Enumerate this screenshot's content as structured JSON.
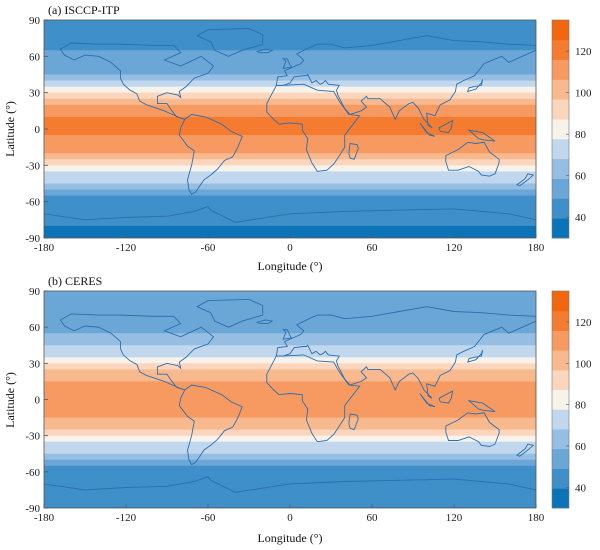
{
  "colors": {
    "bins": [
      "#0b73b7",
      "#3f8fc9",
      "#6aa6d6",
      "#95bee2",
      "#c0d7ed",
      "#f7f2ea",
      "#fbd6bd",
      "#f9b98e",
      "#f79a61",
      "#f47b2f",
      "#f2660e"
    ],
    "coast": "#2b6fb0"
  },
  "chart_data": [
    {
      "type": "heatmap",
      "title": "(a) ISCCP-ITP",
      "xlabel": "Longitude (°)",
      "ylabel": "Latitude (°)",
      "xlim": [
        -180,
        180
      ],
      "ylim": [
        -90,
        90
      ],
      "xticks": [
        "-180",
        "-120",
        "-60",
        "0",
        "60",
        "120",
        "180"
      ],
      "yticks": [
        "90",
        "60",
        "30",
        "0",
        "-30",
        "-60",
        "-90"
      ],
      "colorbar": {
        "range": [
          30,
          135
        ],
        "ticks": [
          "120",
          "100",
          "80",
          "60",
          "40"
        ]
      },
      "zonal_profile": {
        "lat": [
          90,
          75,
          60,
          45,
          30,
          15,
          0,
          -15,
          -30,
          -45,
          -60,
          -75,
          -90
        ],
        "value": [
          45,
          45,
          50,
          60,
          90,
          115,
          120,
          110,
          90,
          65,
          42,
          42,
          35
        ]
      }
    },
    {
      "type": "heatmap",
      "title": "(b) CERES",
      "xlabel": "Longitude (°)",
      "ylabel": "Latitude (°)",
      "xlim": [
        -180,
        180
      ],
      "ylim": [
        -90,
        90
      ],
      "xticks": [
        "-180",
        "-120",
        "-60",
        "0",
        "60",
        "120",
        "180"
      ],
      "yticks": [
        "90",
        "60",
        "30",
        "0",
        "-30",
        "-60",
        "-90"
      ],
      "colorbar": {
        "range": [
          30,
          135
        ],
        "ticks": [
          "120",
          "100",
          "80",
          "60",
          "40"
        ]
      },
      "zonal_profile": {
        "lat": [
          90,
          75,
          60,
          45,
          30,
          15,
          0,
          -15,
          -30,
          -45,
          -60,
          -75,
          -90
        ],
        "value": [
          55,
          50,
          55,
          65,
          88,
          110,
          115,
          108,
          88,
          65,
          45,
          48,
          45
        ]
      }
    }
  ]
}
